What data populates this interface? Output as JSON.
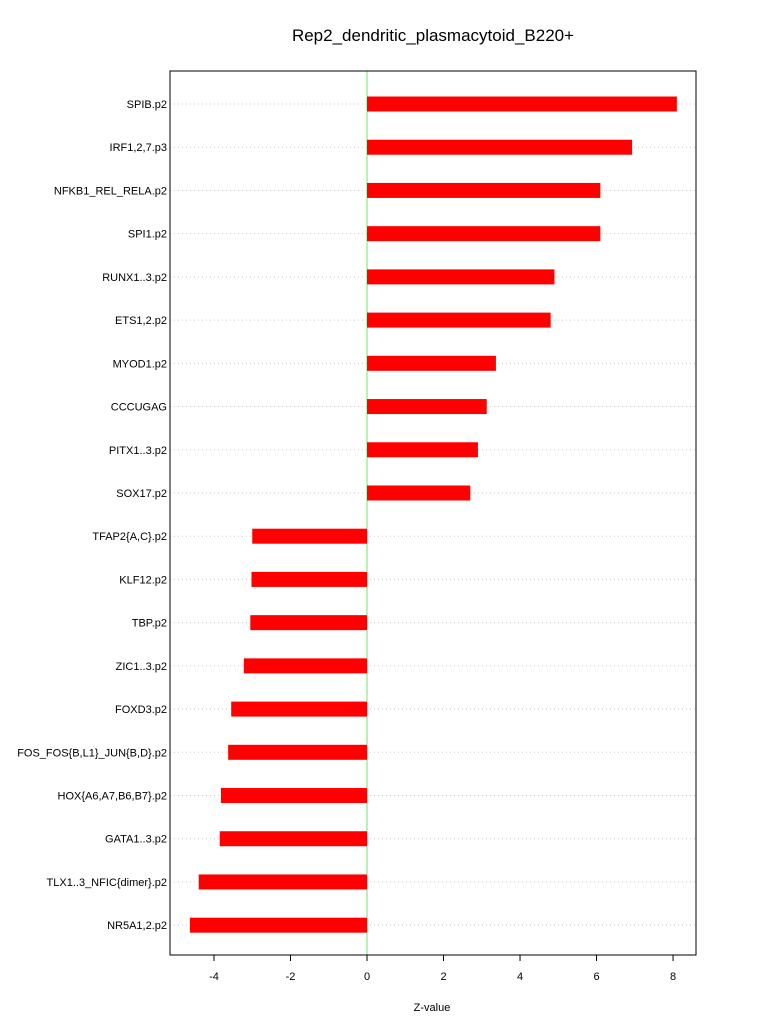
{
  "chart_data": {
    "type": "bar",
    "orientation": "horizontal",
    "title": "Rep2_dendritic_plasmacytoid_B220+",
    "xlabel": "Z-value",
    "ylabel": "",
    "xlim": [
      -5.15,
      8.6
    ],
    "xticks": [
      -4,
      -2,
      0,
      2,
      4,
      6,
      8
    ],
    "grid": "horizontal-dotted",
    "bar_color": "#ff0000",
    "zero_line_color": "#90ee90",
    "grid_color": "#c8c8c8",
    "categories": [
      "SPIB.p2",
      "IRF1,2,7.p3",
      "NFKB1_REL_RELA.p2",
      "SPI1.p2",
      "RUNX1..3.p2",
      "ETS1,2.p2",
      "MYOD1.p2",
      "CCCUGAG",
      "PITX1..3.p2",
      "SOX17.p2",
      "TFAP2{A,C}.p2",
      "KLF12.p2",
      "TBP.p2",
      "ZIC1..3.p2",
      "FOXD3.p2",
      "FOS_FOS{B,L1}_JUN{B,D}.p2",
      "HOX{A6,A7,B6,B7}.p2",
      "GATA1..3.p2",
      "TLX1..3_NFIC{dimer}.p2",
      "NR5A1,2.p2"
    ],
    "values": [
      8.1,
      6.93,
      6.1,
      6.1,
      4.9,
      4.8,
      3.37,
      3.13,
      2.9,
      2.7,
      -3.0,
      -3.02,
      -3.05,
      -3.22,
      -3.55,
      -3.63,
      -3.82,
      -3.85,
      -4.4,
      -4.63
    ]
  }
}
